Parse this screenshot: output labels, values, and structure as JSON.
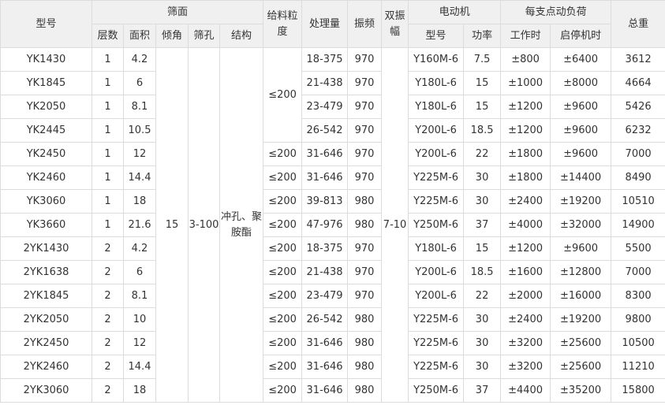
{
  "headers": {
    "model": "型号",
    "screen": "筛面",
    "layers": "层数",
    "area": "面积",
    "angle": "倾角",
    "aperture": "筛孔",
    "structure": "结构",
    "feed_size": "给料粒度",
    "capacity": "处理量",
    "frequency": "振频",
    "amplitude": "双振幅",
    "motor": "电动机",
    "motor_model": "型号",
    "power": "功率",
    "load": "每支点动负荷",
    "working": "工作时",
    "startstop": "启停机时",
    "weight": "总重"
  },
  "shared": {
    "angle": "15",
    "aperture": "3-100",
    "structure": "冲孔、聚胺酯",
    "amplitude": "7-10",
    "feed_size_group": "≤200"
  },
  "rows": [
    {
      "model": "YK1430",
      "layers": "1",
      "area": "4.2",
      "feed": "",
      "capacity": "18-375",
      "freq": "970",
      "motor": "Y160M-6",
      "power": "7.5",
      "work": "±800",
      "start": "±6400",
      "weight": "3612"
    },
    {
      "model": "YK1845",
      "layers": "1",
      "area": "6",
      "feed": "",
      "capacity": "21-438",
      "freq": "970",
      "motor": "Y180L-6",
      "power": "15",
      "work": "±1000",
      "start": "±8000",
      "weight": "4664"
    },
    {
      "model": "YK2050",
      "layers": "1",
      "area": "8.1",
      "feed": "",
      "capacity": "23-479",
      "freq": "970",
      "motor": "Y180L-6",
      "power": "15",
      "work": "±1200",
      "start": "±9600",
      "weight": "5426"
    },
    {
      "model": "YK2445",
      "layers": "1",
      "area": "10.5",
      "feed": "",
      "capacity": "26-542",
      "freq": "970",
      "motor": "Y200L-6",
      "power": "18.5",
      "work": "±1200",
      "start": "±9600",
      "weight": "6232"
    },
    {
      "model": "YK2450",
      "layers": "1",
      "area": "12",
      "feed": "≤200",
      "capacity": "31-646",
      "freq": "970",
      "motor": "Y200L-6",
      "power": "22",
      "work": "±1800",
      "start": "±9600",
      "weight": "7000"
    },
    {
      "model": "YK2460",
      "layers": "1",
      "area": "14.4",
      "feed": "≤200",
      "capacity": "31-646",
      "freq": "970",
      "motor": "Y225M-6",
      "power": "30",
      "work": "±1800",
      "start": "±14400",
      "weight": "8490"
    },
    {
      "model": "YK3060",
      "layers": "1",
      "area": "18",
      "feed": "≤200",
      "capacity": "39-813",
      "freq": "980",
      "motor": "Y225M-6",
      "power": "30",
      "work": "±2400",
      "start": "±19200",
      "weight": "10510"
    },
    {
      "model": "YK3660",
      "layers": "1",
      "area": "21.6",
      "feed": "≤200",
      "capacity": "47-976",
      "freq": "980",
      "motor": "Y250M-6",
      "power": "37",
      "work": "±4000",
      "start": "±32000",
      "weight": "14900"
    },
    {
      "model": "2YK1430",
      "layers": "2",
      "area": "4.2",
      "feed": "≤200",
      "capacity": "18-375",
      "freq": "970",
      "motor": "Y180L-6",
      "power": "15",
      "work": "±1200",
      "start": "±9600",
      "weight": "5500"
    },
    {
      "model": "2YK1638",
      "layers": "2",
      "area": "6",
      "feed": "≤200",
      "capacity": "21-438",
      "freq": "970",
      "motor": "Y200L-6",
      "power": "18.5",
      "work": "±1600",
      "start": "±12800",
      "weight": "7000"
    },
    {
      "model": "2YK1845",
      "layers": "2",
      "area": "8.1",
      "feed": "≤200",
      "capacity": "23-479",
      "freq": "970",
      "motor": "Y200L-6",
      "power": "22",
      "work": "±2000",
      "start": "±16000",
      "weight": "8300"
    },
    {
      "model": "2YK2050",
      "layers": "2",
      "area": "10",
      "feed": "≤200",
      "capacity": "26-542",
      "freq": "980",
      "motor": "Y225M-6",
      "power": "30",
      "work": "±2400",
      "start": "±19200",
      "weight": "9800"
    },
    {
      "model": "2YK2450",
      "layers": "2",
      "area": "12",
      "feed": "≤200",
      "capacity": "31-646",
      "freq": "980",
      "motor": "Y225M-6",
      "power": "30",
      "work": "±3200",
      "start": "±25600",
      "weight": "10500"
    },
    {
      "model": "2YK2460",
      "layers": "2",
      "area": "14.4",
      "feed": "≤200",
      "capacity": "31-646",
      "freq": "980",
      "motor": "Y225M-6",
      "power": "30",
      "work": "±3200",
      "start": "±25600",
      "weight": "11210"
    },
    {
      "model": "2YK3060",
      "layers": "2",
      "area": "18",
      "feed": "≤200",
      "capacity": "31-646",
      "freq": "980",
      "motor": "Y250M-6",
      "power": "37",
      "work": "±4400",
      "start": "±35200",
      "weight": "15800"
    }
  ]
}
